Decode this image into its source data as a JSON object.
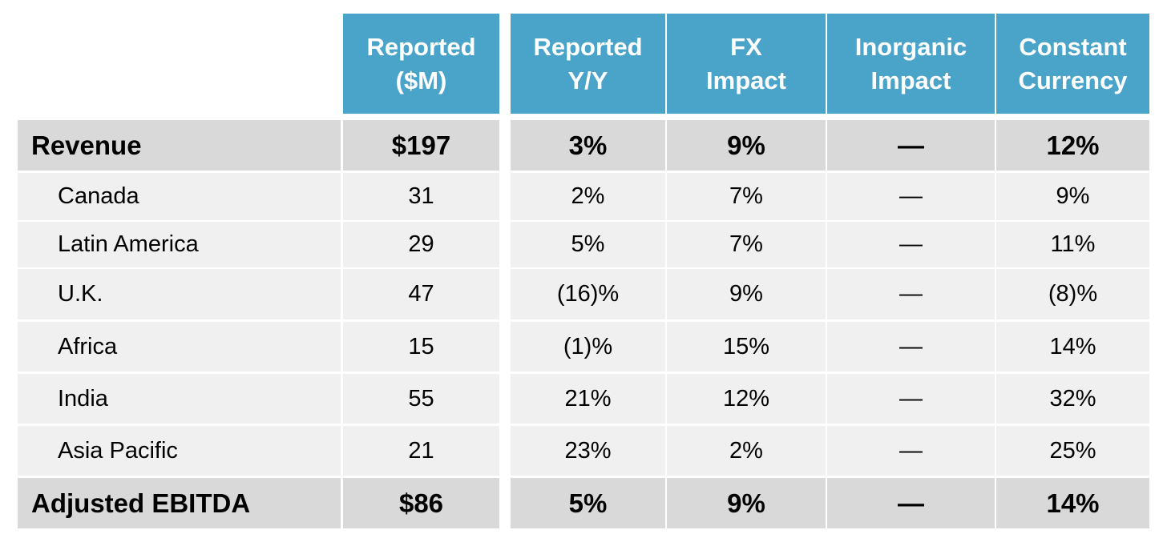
{
  "headers": {
    "reported": "Reported ($M)",
    "reported_line1": "Reported",
    "reported_line2": "($M)",
    "reported_yy_line1": "Reported",
    "reported_yy_line2": "Y/Y",
    "fx_line1": "FX",
    "fx_line2": "Impact",
    "inorganic_line1": "Inorganic",
    "inorganic_line2": "Impact",
    "constant_line1": "Constant",
    "constant_line2": "Currency"
  },
  "rows": [
    {
      "label": "Revenue",
      "reported": "$197",
      "reported_yy": "3%",
      "fx": "9%",
      "inorganic": "—",
      "constant": "12%"
    },
    {
      "label": "Canada",
      "reported": "31",
      "reported_yy": "2%",
      "fx": "7%",
      "inorganic": "—",
      "constant": "9%"
    },
    {
      "label": "Latin America",
      "reported": "29",
      "reported_yy": "5%",
      "fx": "7%",
      "inorganic": "—",
      "constant": "11%"
    },
    {
      "label": "U.K.",
      "reported": "47",
      "reported_yy": "(16)%",
      "fx": "9%",
      "inorganic": "—",
      "constant": "(8)%"
    },
    {
      "label": "Africa",
      "reported": "15",
      "reported_yy": "(1)%",
      "fx": "15%",
      "inorganic": "—",
      "constant": "14%"
    },
    {
      "label": "India",
      "reported": "55",
      "reported_yy": "21%",
      "fx": "12%",
      "inorganic": "—",
      "constant": "32%"
    },
    {
      "label": "Asia Pacific",
      "reported": "21",
      "reported_yy": "23%",
      "fx": "2%",
      "inorganic": "—",
      "constant": "25%"
    },
    {
      "label": "Adjusted EBITDA",
      "reported": "$86",
      "reported_yy": "5%",
      "fx": "9%",
      "inorganic": "—",
      "constant": "14%"
    }
  ],
  "colors": {
    "header_bg": "#4aa3c9",
    "header_text": "#ffffff",
    "bold_row_bg": "#d9d9d9",
    "sub_row_bg": "#f0f0f0"
  }
}
